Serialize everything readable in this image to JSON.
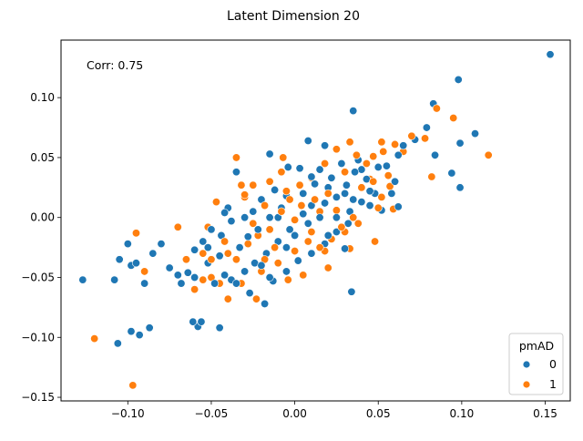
{
  "chart_data": {
    "type": "scatter",
    "title": "Latent Dimension 20",
    "xlabel": "",
    "ylabel": "",
    "xlim": [
      -0.14,
      0.165
    ],
    "ylim": [
      -0.153,
      0.148
    ],
    "x_ticks": [
      -0.1,
      -0.05,
      0.0,
      0.05,
      0.1,
      0.15
    ],
    "x_tick_labels": [
      "−0.10",
      "−0.05",
      "0.00",
      "0.05",
      "0.10",
      "0.15"
    ],
    "y_ticks": [
      -0.15,
      -0.1,
      -0.05,
      0.0,
      0.05,
      0.1
    ],
    "y_tick_labels": [
      "−0.15",
      "−0.10",
      "−0.05",
      "0.00",
      "0.05",
      "0.10"
    ],
    "grid": false,
    "annotation": "Corr: 0.75",
    "legend": {
      "title": "pmAD",
      "placement": "lower-right",
      "entries": [
        {
          "label": "0",
          "color": "#1f77b4"
        },
        {
          "label": "1",
          "color": "#ff7f0e"
        }
      ]
    },
    "series": [
      {
        "name": "0",
        "color": "#1f77b4",
        "points": [
          [
            0.153,
            0.136
          ],
          [
            0.098,
            0.115
          ],
          [
            0.083,
            0.095
          ],
          [
            0.108,
            0.07
          ],
          [
            0.099,
            0.062
          ],
          [
            0.084,
            0.052
          ],
          [
            0.094,
            0.037
          ],
          [
            0.099,
            0.025
          ],
          [
            0.072,
            0.065
          ],
          [
            0.079,
            0.075
          ],
          [
            0.065,
            0.06
          ],
          [
            0.062,
            0.052
          ],
          [
            0.055,
            0.043
          ],
          [
            0.06,
            0.03
          ],
          [
            0.058,
            0.02
          ],
          [
            0.062,
            0.009
          ],
          [
            0.035,
            0.089
          ],
          [
            0.018,
            0.06
          ],
          [
            0.008,
            0.064
          ],
          [
            0.003,
            0.041
          ],
          [
            -0.015,
            0.053
          ],
          [
            -0.035,
            0.038
          ],
          [
            -0.004,
            0.042
          ],
          [
            0.01,
            0.034
          ],
          [
            0.015,
            0.04
          ],
          [
            0.022,
            0.033
          ],
          [
            0.031,
            0.027
          ],
          [
            0.036,
            0.038
          ],
          [
            0.043,
            0.032
          ],
          [
            0.048,
            0.02
          ],
          [
            0.04,
            0.013
          ],
          [
            0.033,
            0.005
          ],
          [
            0.025,
            0.017
          ],
          [
            0.018,
            0.012
          ],
          [
            0.012,
            0.028
          ],
          [
            0.005,
            0.02
          ],
          [
            -0.005,
            0.018
          ],
          [
            -0.012,
            0.023
          ],
          [
            -0.02,
            0.015
          ],
          [
            -0.025,
            0.005
          ],
          [
            -0.03,
            0.0
          ],
          [
            -0.038,
            -0.003
          ],
          [
            -0.04,
            0.008
          ],
          [
            -0.044,
            -0.015
          ],
          [
            -0.05,
            -0.01
          ],
          [
            -0.055,
            -0.02
          ],
          [
            -0.06,
            -0.027
          ],
          [
            -0.065,
            -0.035
          ],
          [
            -0.07,
            -0.048
          ],
          [
            -0.068,
            -0.055
          ],
          [
            -0.075,
            -0.042
          ],
          [
            -0.08,
            -0.022
          ],
          [
            -0.085,
            -0.03
          ],
          [
            -0.09,
            -0.055
          ],
          [
            -0.095,
            -0.038
          ],
          [
            -0.1,
            -0.022
          ],
          [
            -0.105,
            -0.035
          ],
          [
            -0.108,
            -0.052
          ],
          [
            -0.098,
            -0.04
          ],
          [
            -0.093,
            -0.098
          ],
          [
            -0.098,
            -0.095
          ],
          [
            -0.106,
            -0.105
          ],
          [
            -0.087,
            -0.092
          ],
          [
            -0.127,
            -0.052
          ],
          [
            -0.061,
            -0.087
          ],
          [
            -0.058,
            -0.091
          ],
          [
            -0.056,
            -0.087
          ],
          [
            -0.045,
            -0.092
          ],
          [
            -0.027,
            -0.063
          ],
          [
            -0.018,
            -0.072
          ],
          [
            -0.013,
            -0.053
          ],
          [
            -0.005,
            -0.045
          ],
          [
            0.002,
            -0.036
          ],
          [
            0.01,
            -0.03
          ],
          [
            0.018,
            -0.022
          ],
          [
            0.025,
            -0.012
          ],
          [
            0.032,
            -0.005
          ],
          [
            0.034,
            -0.062
          ],
          [
            0.03,
            -0.026
          ],
          [
            0.02,
            -0.015
          ],
          [
            0.008,
            -0.005
          ],
          [
            -0.003,
            -0.01
          ],
          [
            -0.01,
            -0.02
          ],
          [
            -0.017,
            -0.03
          ],
          [
            -0.024,
            -0.038
          ],
          [
            -0.03,
            -0.045
          ],
          [
            -0.038,
            -0.052
          ],
          [
            -0.045,
            -0.032
          ],
          [
            -0.052,
            -0.038
          ],
          [
            -0.06,
            -0.05
          ],
          [
            -0.064,
            -0.046
          ],
          [
            -0.048,
            -0.055
          ],
          [
            -0.035,
            -0.055
          ],
          [
            -0.042,
            -0.048
          ],
          [
            0.015,
            0.0
          ],
          [
            0.025,
            0.0
          ],
          [
            0.035,
            0.015
          ],
          [
            0.045,
            0.022
          ],
          [
            0.052,
            0.006
          ],
          [
            0.05,
            0.042
          ],
          [
            0.038,
            0.048
          ],
          [
            0.028,
            0.045
          ],
          [
            0.02,
            0.025
          ],
          [
            0.005,
            0.003
          ],
          [
            -0.008,
            0.008
          ],
          [
            -0.015,
            0.0
          ],
          [
            -0.022,
            -0.01
          ],
          [
            -0.028,
            -0.016
          ],
          [
            -0.033,
            -0.025
          ],
          [
            -0.005,
            -0.025
          ],
          [
            0.0,
            -0.015
          ],
          [
            -0.01,
            0.0
          ],
          [
            0.01,
            0.01
          ],
          [
            0.03,
            0.02
          ],
          [
            0.04,
            0.04
          ],
          [
            0.045,
            0.01
          ],
          [
            -0.042,
            0.004
          ],
          [
            -0.052,
            -0.025
          ],
          [
            -0.02,
            -0.04
          ],
          [
            -0.015,
            -0.05
          ]
        ]
      },
      {
        "name": "1",
        "color": "#ff7f0e",
        "points": [
          [
            0.116,
            0.052
          ],
          [
            0.095,
            0.083
          ],
          [
            0.085,
            0.091
          ],
          [
            0.082,
            0.034
          ],
          [
            0.078,
            0.066
          ],
          [
            0.07,
            0.068
          ],
          [
            0.065,
            0.055
          ],
          [
            0.06,
            0.061
          ],
          [
            0.052,
            0.063
          ],
          [
            0.053,
            0.055
          ],
          [
            0.047,
            0.051
          ],
          [
            0.056,
            0.035
          ],
          [
            0.057,
            0.026
          ],
          [
            0.052,
            0.017
          ],
          [
            0.059,
            0.007
          ],
          [
            0.05,
            0.008
          ],
          [
            0.033,
            0.063
          ],
          [
            0.025,
            0.057
          ],
          [
            0.018,
            0.045
          ],
          [
            0.01,
            0.033
          ],
          [
            0.003,
            0.027
          ],
          [
            -0.007,
            0.05
          ],
          [
            -0.008,
            0.038
          ],
          [
            -0.025,
            0.027
          ],
          [
            -0.03,
            0.017
          ],
          [
            -0.018,
            0.01
          ],
          [
            -0.03,
            0.019
          ],
          [
            -0.035,
            0.05
          ],
          [
            -0.047,
            0.013
          ],
          [
            -0.052,
            -0.008
          ],
          [
            -0.042,
            -0.02
          ],
          [
            -0.05,
            -0.035
          ],
          [
            -0.055,
            -0.03
          ],
          [
            -0.065,
            -0.035
          ],
          [
            -0.07,
            -0.008
          ],
          [
            -0.095,
            -0.013
          ],
          [
            -0.09,
            -0.045
          ],
          [
            -0.06,
            -0.06
          ],
          [
            -0.05,
            -0.05
          ],
          [
            -0.045,
            -0.055
          ],
          [
            -0.04,
            -0.068
          ],
          [
            -0.032,
            -0.055
          ],
          [
            -0.02,
            -0.045
          ],
          [
            -0.01,
            -0.038
          ],
          [
            0.0,
            -0.028
          ],
          [
            0.008,
            -0.02
          ],
          [
            0.015,
            -0.025
          ],
          [
            0.022,
            -0.018
          ],
          [
            0.03,
            -0.012
          ],
          [
            0.038,
            -0.005
          ],
          [
            0.048,
            -0.02
          ],
          [
            0.033,
            -0.026
          ],
          [
            0.018,
            -0.028
          ],
          [
            0.01,
            -0.012
          ],
          [
            0.0,
            -0.002
          ],
          [
            -0.008,
            0.005
          ],
          [
            -0.015,
            -0.01
          ],
          [
            -0.022,
            -0.015
          ],
          [
            -0.028,
            -0.022
          ],
          [
            -0.035,
            -0.035
          ],
          [
            -0.04,
            -0.03
          ],
          [
            -0.023,
            -0.068
          ],
          [
            -0.004,
            -0.052
          ],
          [
            0.005,
            -0.048
          ],
          [
            0.02,
            -0.042
          ],
          [
            0.025,
            0.006
          ],
          [
            0.037,
            0.052
          ],
          [
            0.043,
            0.045
          ],
          [
            0.045,
            0.032
          ],
          [
            0.03,
            0.038
          ],
          [
            0.02,
            0.02
          ],
          [
            0.012,
            0.015
          ],
          [
            0.004,
            0.01
          ],
          [
            -0.003,
            0.015
          ],
          [
            -0.012,
            -0.025
          ],
          [
            -0.018,
            -0.035
          ],
          [
            0.028,
            -0.008
          ],
          [
            0.04,
            0.025
          ],
          [
            0.047,
            0.03
          ],
          [
            -0.097,
            -0.14
          ],
          [
            -0.12,
            -0.101
          ],
          [
            -0.015,
            0.03
          ],
          [
            -0.005,
            0.022
          ],
          [
            0.015,
            0.005
          ],
          [
            0.035,
            0.0
          ],
          [
            -0.055,
            -0.052
          ],
          [
            -0.025,
            -0.005
          ],
          [
            -0.032,
            0.027
          ]
        ]
      }
    ]
  }
}
